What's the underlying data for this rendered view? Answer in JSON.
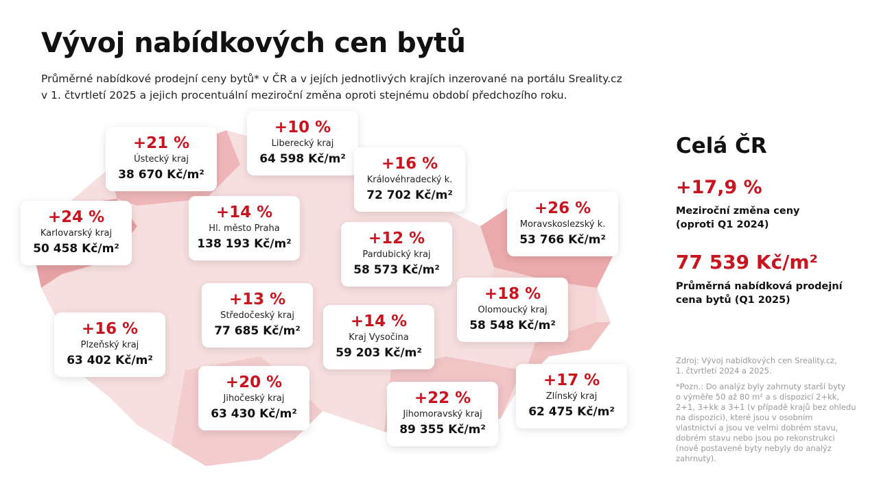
{
  "header": {
    "title": "Vývoj nabídkových cen bytů",
    "subtitle": [
      "Průměrné nabídkové prodejní ceny bytů* v ČR a v jejích jednotlivých krajích inzerované na portálu Sreality.cz",
      "v 1. čtvrtletí 2025 a jejich procentuální meziroční změna oproti stejnému období předchozího roku."
    ]
  },
  "regions": [
    {
      "change": "+21 %",
      "name": "Ústecký kraj",
      "price": "38 670 Kč/m²"
    },
    {
      "change": "+10 %",
      "name": "Liberecký kraj",
      "price": "64 598 Kč/m²"
    },
    {
      "change": "+16 %",
      "name": "Královéhradecký k.",
      "price": "72 702 Kč/m²"
    },
    {
      "change": "+24 %",
      "name": "Karlovarský kraj",
      "price": "50 458 Kč/m²"
    },
    {
      "change": "+14 %",
      "name": "Hl. město Praha",
      "price": "138 193 Kč/m²"
    },
    {
      "change": "+12 %",
      "name": "Pardubický kraj",
      "price": "58 573 Kč/m²"
    },
    {
      "change": "+26 %",
      "name": "Moravskoslezský k.",
      "price": "53 766 Kč/m²"
    },
    {
      "change": "+13 %",
      "name": "Středočeský kraj",
      "price": "77 685 Kč/m²"
    },
    {
      "change": "+14 %",
      "name": "Kraj Vysočina",
      "price": "59 203 Kč/m²"
    },
    {
      "change": "+18 %",
      "name": "Olomoucký kraj",
      "price": "58 548 Kč/m²"
    },
    {
      "change": "+16 %",
      "name": "Plzeňský kraj",
      "price": "63 402 Kč/m²"
    },
    {
      "change": "+20 %",
      "name": "Jihočeský kraj",
      "price": "63 430 Kč/m²"
    },
    {
      "change": "+22 %",
      "name": "Jihomoravský kraj",
      "price": "89 355 Kč/m²"
    },
    {
      "change": "+17 %",
      "name": "Zlínský kraj",
      "price": "62 475 Kč/m²"
    }
  ],
  "summary": {
    "title": "Celá ČR",
    "change": "+17,9 %",
    "change_label": [
      "Meziroční změna ceny",
      "(oproti Q1 2024)"
    ],
    "price": "77 539 Kč/m²",
    "price_label": [
      "Průměrná nabídková prodejní",
      "cena bytů (Q1 2025)"
    ]
  },
  "notes": {
    "source": [
      "Zdroj: Vývoj nabídkových cen Sreality.cz,",
      "1. čtvrtletí 2024 a 2025."
    ],
    "note": [
      "*Pozn.: Do analýz byly zahrnuty starší byty",
      "o výměře 50 až 80 m² a s dispozicí 2+kk,",
      "2+1, 3+kk a 3+1 (v případě krajů bez ohledu",
      "na dispozici), které jsou v osobním",
      "vlastnictví a jsou ve velmi dobrém stavu,",
      "dobrém stavu nebo jsou po rekonstrukci",
      "(nově postavené byty nebyly do analýz",
      "zahrnuty)."
    ]
  }
}
